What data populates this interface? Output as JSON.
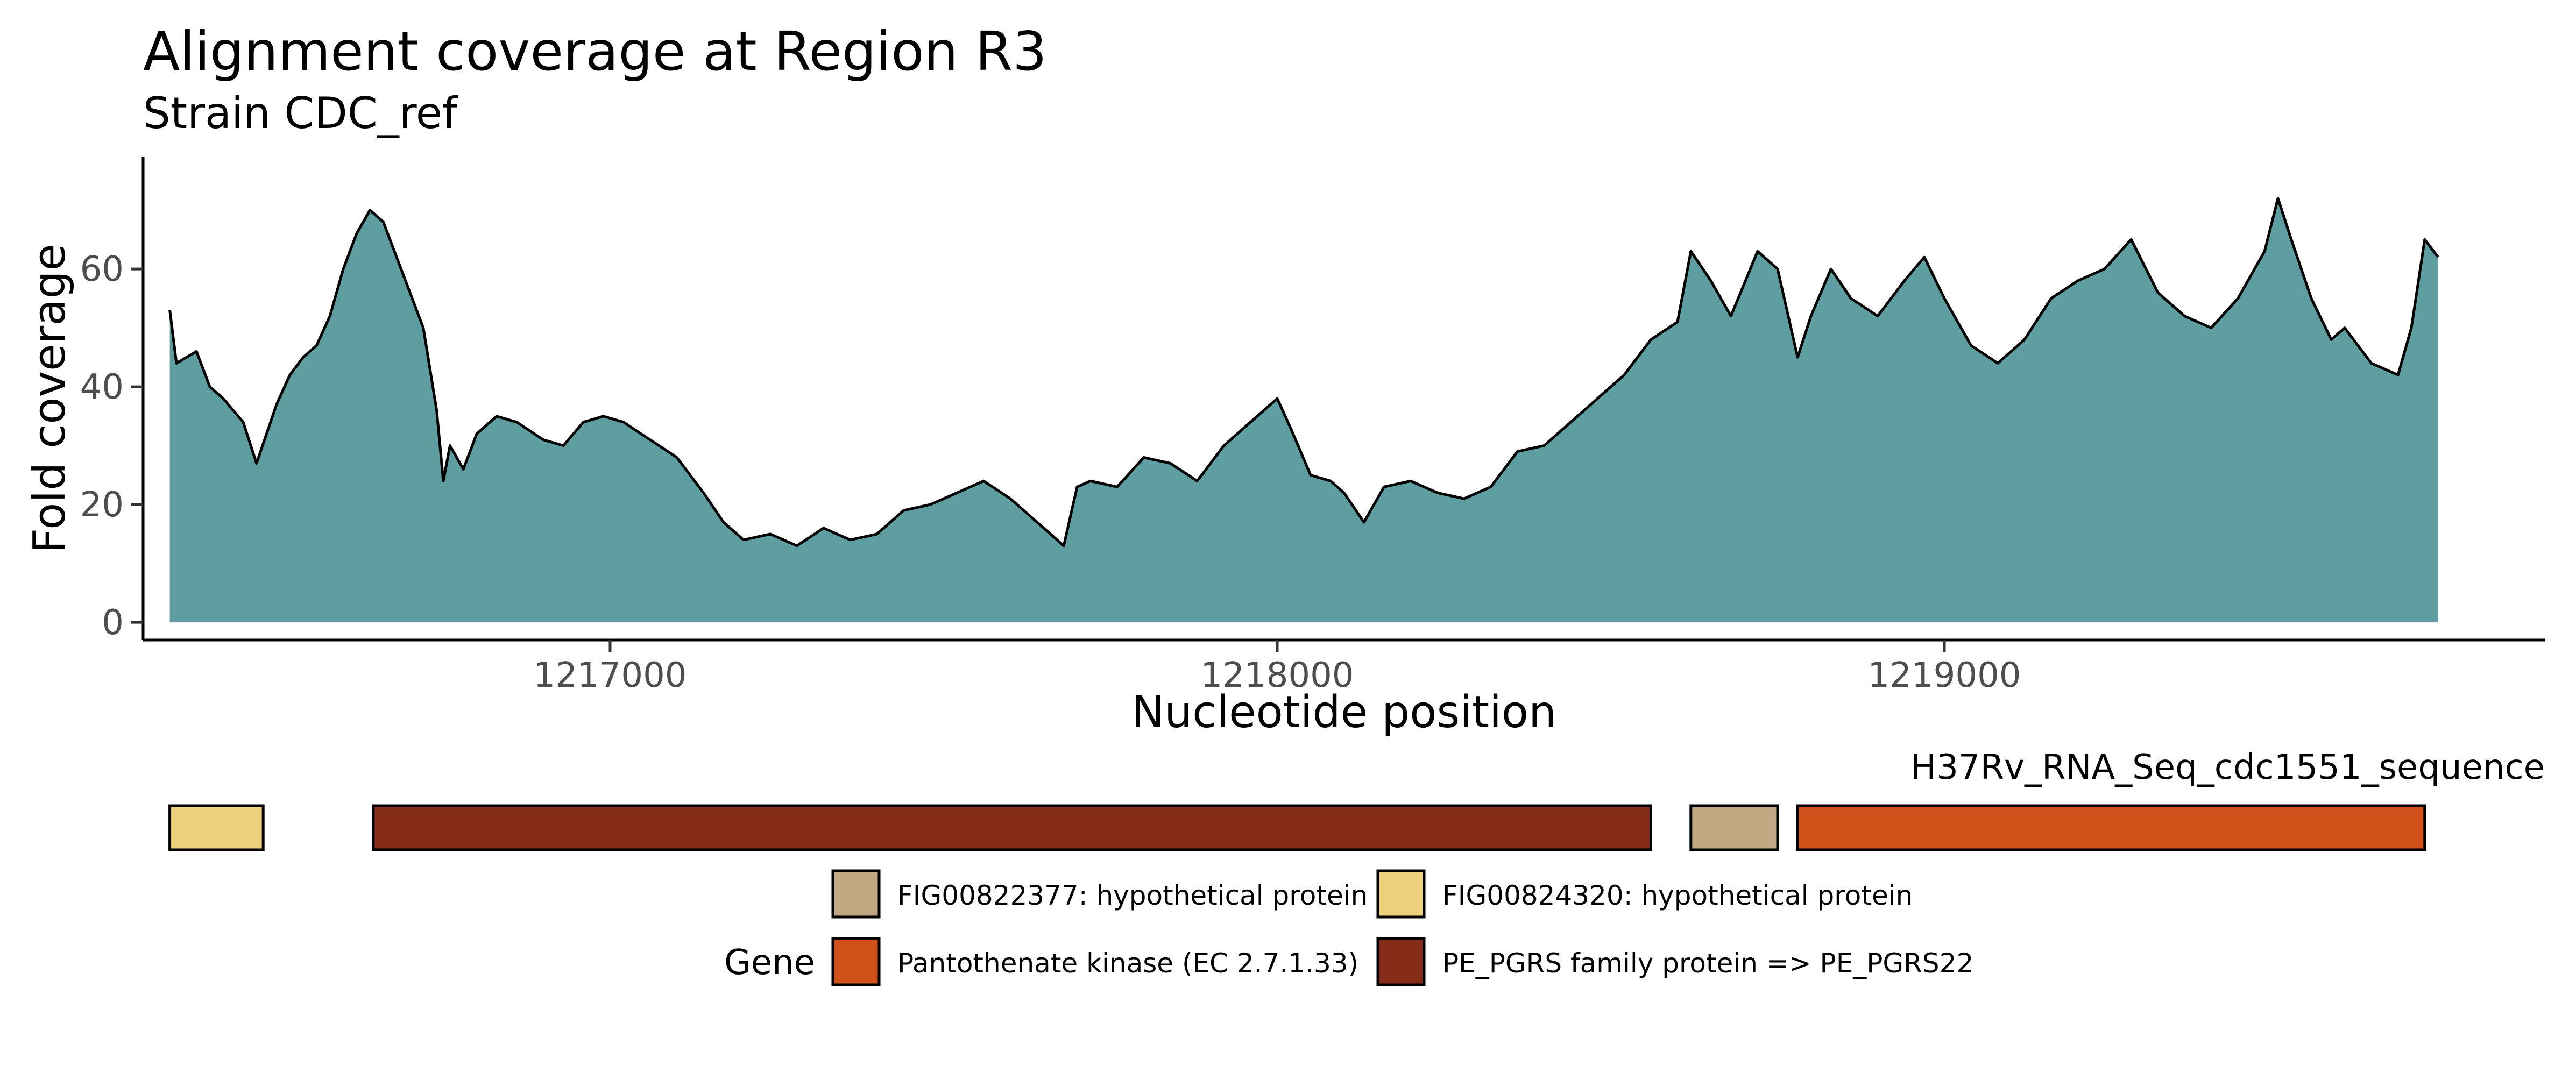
{
  "chart_data": {
    "type": "area",
    "title": "Alignment coverage at Region R3",
    "subtitle": "Strain CDC_ref",
    "xlabel": "Nucleotide position",
    "ylabel": "Fold coverage",
    "xlim": [
      1216300,
      1219900
    ],
    "ylim": [
      -3,
      79
    ],
    "xticks": [
      1217000,
      1218000,
      1219000
    ],
    "xtick_labels": [
      "1217000",
      "1218000",
      "1219000"
    ],
    "yticks": [
      0,
      20,
      40,
      60
    ],
    "ytick_labels": [
      "0",
      "20",
      "40",
      "60"
    ],
    "grid": false,
    "colors": {
      "fill": "#5F9EA0",
      "line": "#000000"
    },
    "series": [
      {
        "x": [
          1216340,
          1216350,
          1216380,
          1216400,
          1216420,
          1216450,
          1216470,
          1216500,
          1216520,
          1216540,
          1216560,
          1216580,
          1216600,
          1216620,
          1216640,
          1216660,
          1216680,
          1216700,
          1216720,
          1216740,
          1216750,
          1216760,
          1216780,
          1216800,
          1216830,
          1216860,
          1216900,
          1216930,
          1216960,
          1216990,
          1217020,
          1217060,
          1217100,
          1217140,
          1217170,
          1217200,
          1217240,
          1217280,
          1217320,
          1217360,
          1217400,
          1217440,
          1217480,
          1217520,
          1217560,
          1217600,
          1217640,
          1217680,
          1217700,
          1217720,
          1217760,
          1217800,
          1217840,
          1217880,
          1217920,
          1217960,
          1218000,
          1218020,
          1218050,
          1218080,
          1218100,
          1218130,
          1218160,
          1218200,
          1218240,
          1218280,
          1218320,
          1218360,
          1218400,
          1218440,
          1218480,
          1218520,
          1218560,
          1218600,
          1218620,
          1218650,
          1218680,
          1218720,
          1218750,
          1218780,
          1218800,
          1218830,
          1218860,
          1218900,
          1218940,
          1218970,
          1219000,
          1219040,
          1219080,
          1219120,
          1219160,
          1219200,
          1219240,
          1219280,
          1219320,
          1219360,
          1219400,
          1219440,
          1219480,
          1219500,
          1219520,
          1219550,
          1219580,
          1219600,
          1219640,
          1219680,
          1219700,
          1219720,
          1219740
        ],
        "values": [
          53,
          44,
          46,
          40,
          38,
          34,
          27,
          37,
          42,
          45,
          47,
          52,
          60,
          66,
          70,
          68,
          62,
          56,
          50,
          36,
          24,
          30,
          26,
          32,
          35,
          34,
          31,
          30,
          34,
          35,
          34,
          31,
          28,
          22,
          17,
          14,
          15,
          13,
          16,
          14,
          15,
          19,
          20,
          22,
          24,
          21,
          17,
          13,
          23,
          24,
          23,
          28,
          27,
          24,
          30,
          34,
          38,
          33,
          25,
          24,
          22,
          17,
          23,
          24,
          22,
          21,
          23,
          29,
          30,
          34,
          38,
          42,
          48,
          51,
          63,
          58,
          52,
          63,
          60,
          45,
          52,
          60,
          55,
          52,
          58,
          62,
          55,
          47,
          44,
          48,
          55,
          58,
          60,
          65,
          56,
          52,
          50,
          55,
          63,
          72,
          65,
          55,
          48,
          50,
          44,
          42,
          50,
          65,
          62
        ]
      }
    ],
    "gene_track": {
      "label": "H37Rv_RNA_Seq_cdc1551_sequence",
      "genes": [
        {
          "start": 1216340,
          "end": 1216480,
          "gene": "FIG00824320: hypothetical protein",
          "color": "#EDD07C"
        },
        {
          "start": 1216645,
          "end": 1218560,
          "gene": "PE_PGRS family protein => PE_PGRS22",
          "color": "#862D1A"
        },
        {
          "start": 1218620,
          "end": 1218750,
          "gene": "FIG00822377: hypothetical protein",
          "color": "#BFA882"
        },
        {
          "start": 1218780,
          "end": 1219720,
          "gene": "Pantothenate kinase (EC 2.7.1.33)",
          "color": "#CF5119"
        }
      ]
    },
    "legend": {
      "title": "Gene",
      "placement": "bottom",
      "entries": [
        {
          "label": "FIG00822377: hypothetical protein",
          "color": "#BFA882"
        },
        {
          "label": "FIG00824320: hypothetical protein",
          "color": "#EDD07C"
        },
        {
          "label": "Pantothenate kinase (EC 2.7.1.33)",
          "color": "#CF5119"
        },
        {
          "label": "PE_PGRS family protein => PE_PGRS22",
          "color": "#862D1A"
        }
      ]
    }
  }
}
